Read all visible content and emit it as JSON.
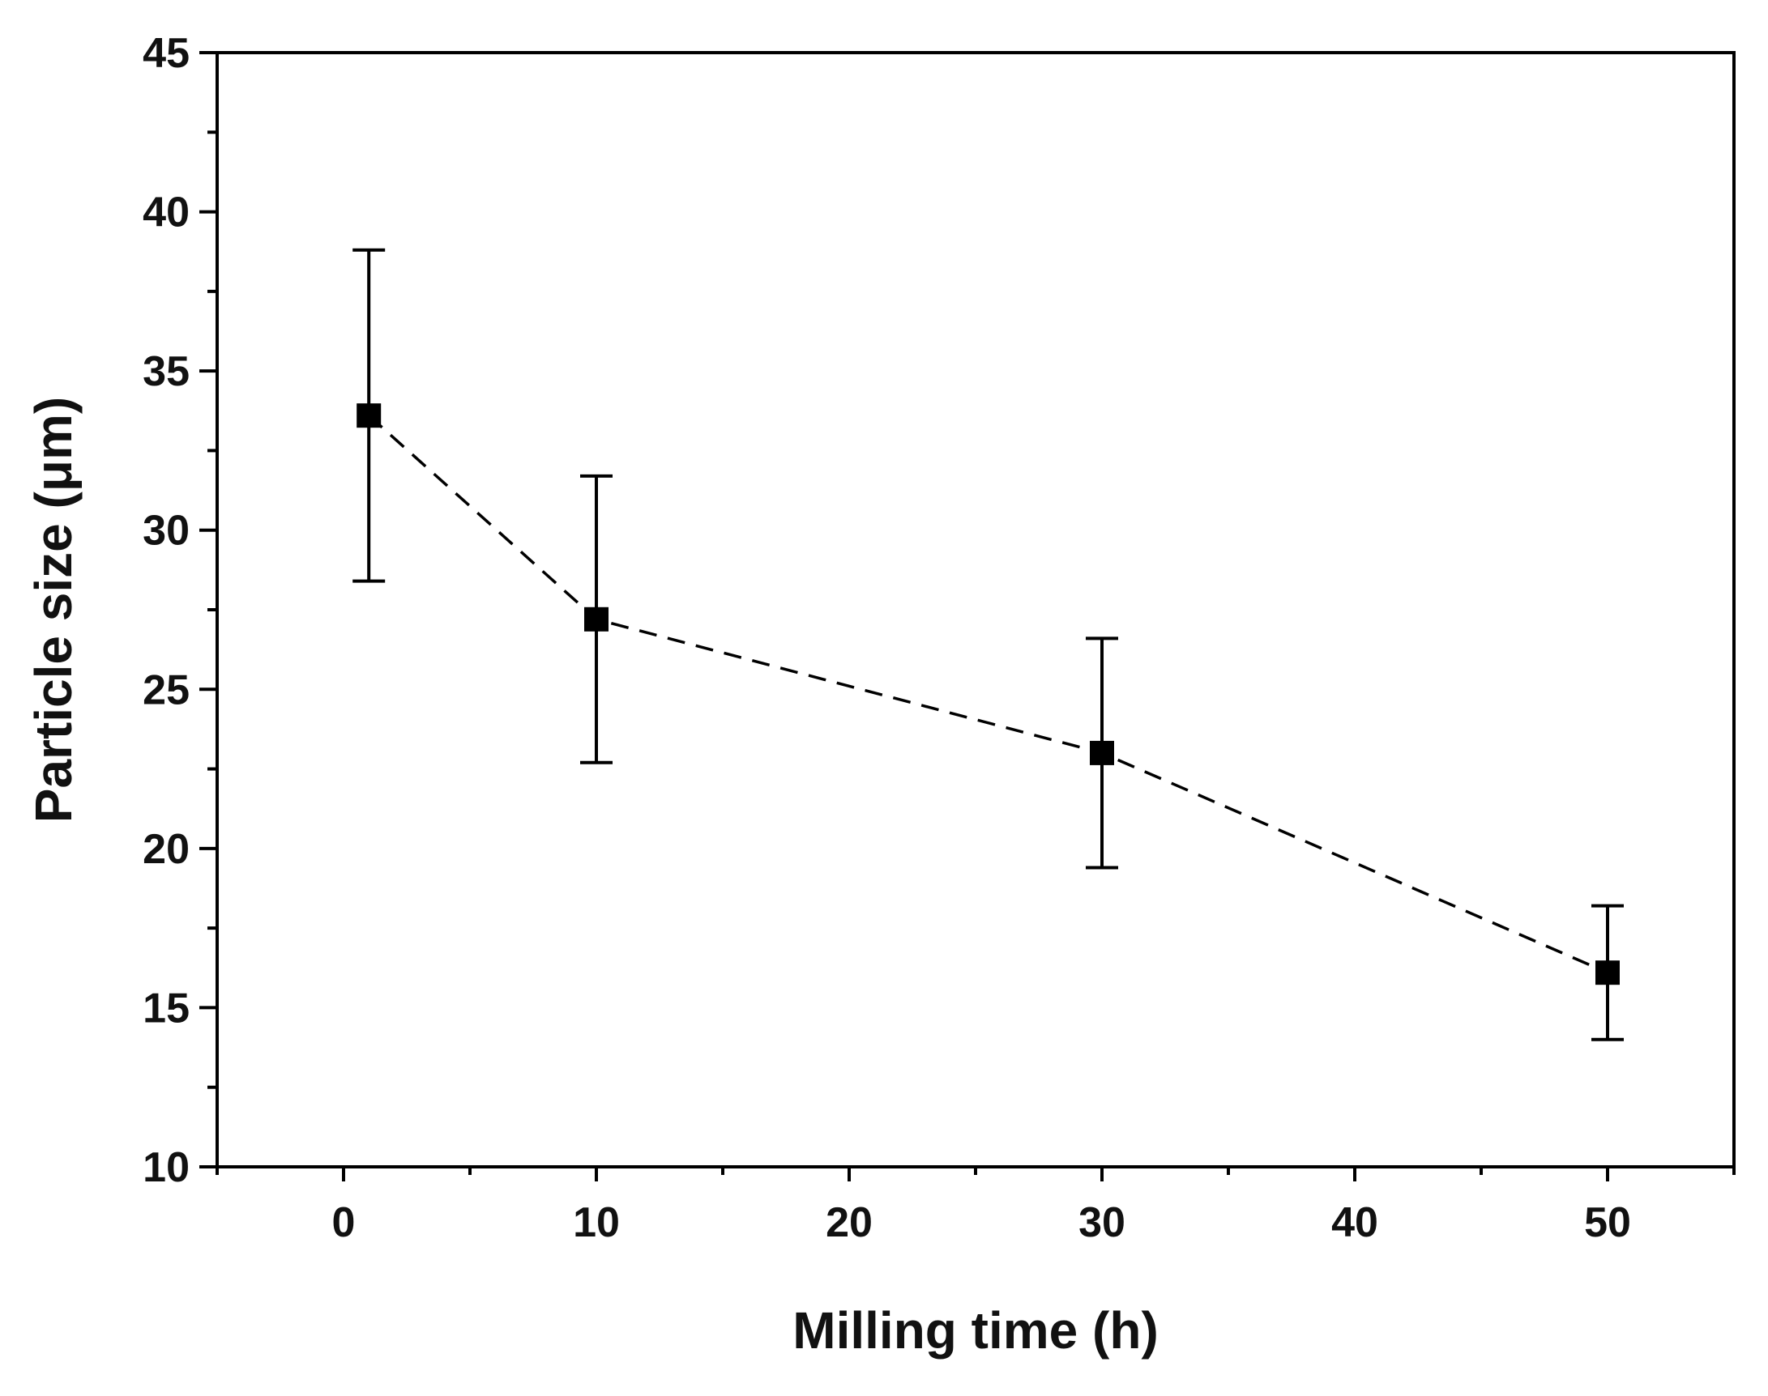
{
  "chart_data": {
    "type": "line",
    "title": "",
    "xlabel": "Milling time (h)",
    "ylabel": "Particle size (μm)",
    "xlim": [
      -5,
      55
    ],
    "ylim": [
      10,
      45
    ],
    "xticks": [
      0,
      10,
      20,
      30,
      40,
      50
    ],
    "yticks": [
      10,
      15,
      20,
      25,
      30,
      35,
      40,
      45
    ],
    "grid": false,
    "legend": "none",
    "series": [
      {
        "name": "Particle size",
        "line_style": "dashed",
        "marker": "square",
        "color": "#000000",
        "x": [
          1,
          10,
          30,
          50
        ],
        "y": [
          33.6,
          27.2,
          23.0,
          16.1
        ],
        "err_low": [
          28.4,
          22.7,
          19.4,
          14.0
        ],
        "err_high": [
          38.8,
          31.7,
          26.6,
          18.2
        ]
      }
    ]
  }
}
